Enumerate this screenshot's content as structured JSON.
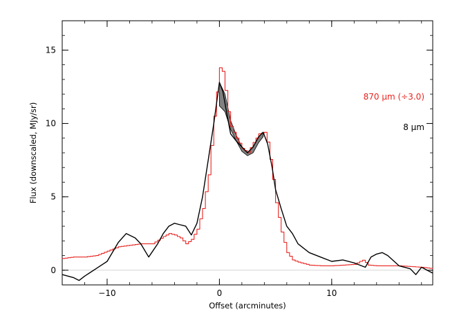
{
  "chart_data": {
    "type": "line",
    "xlabel": "Offset (arcminutes)",
    "ylabel": "Flux (downscaled, MJy/sr)",
    "xlim": [
      -14,
      19
    ],
    "ylim": [
      -1,
      17
    ],
    "x_ticks": [
      -10,
      0,
      10
    ],
    "y_ticks": [
      0,
      5,
      10,
      15
    ],
    "x_tick_labels": [
      "−10",
      "0",
      "10"
    ],
    "y_tick_labels": [
      "0",
      "5",
      "10",
      "15"
    ],
    "grid": false,
    "zero_line": true,
    "legend_placement": "right",
    "series": [
      {
        "name": "870 μm (÷3.0)",
        "color": "#e8231f",
        "style": "step",
        "x": [
          -14,
          -13,
          -12,
          -11,
          -10,
          -9,
          -8,
          -7,
          -6,
          -5,
          -4.5,
          -4,
          -3.5,
          -3,
          -2.5,
          -2,
          -1.5,
          -1,
          -0.5,
          0,
          0.3,
          0.7,
          1,
          1.5,
          2,
          2.5,
          3,
          3.5,
          4,
          4.3,
          4.7,
          5,
          5.5,
          6,
          6.5,
          7,
          7.5,
          8,
          9,
          10,
          11,
          12,
          12.5,
          12.8,
          13.2,
          14,
          15,
          16,
          17,
          18,
          19
        ],
        "values": [
          0.8,
          0.9,
          0.9,
          1.0,
          1.3,
          1.6,
          1.7,
          1.8,
          1.8,
          2.3,
          2.5,
          2.4,
          2.2,
          1.8,
          2.1,
          2.8,
          4.2,
          6.5,
          10.5,
          13.8,
          13.5,
          11.0,
          9.8,
          9.0,
          8.3,
          8.0,
          8.7,
          9.3,
          9.4,
          8.6,
          6.5,
          4.6,
          2.6,
          1.2,
          0.7,
          0.55,
          0.45,
          0.35,
          0.3,
          0.3,
          0.35,
          0.4,
          0.6,
          0.7,
          0.35,
          0.3,
          0.3,
          0.3,
          0.25,
          0.2,
          0.1
        ]
      },
      {
        "name": "8 μm",
        "color": "#000000",
        "style": "line",
        "x": [
          -14,
          -13,
          -12.5,
          -12,
          -11,
          -10,
          -9,
          -8.3,
          -7.5,
          -7,
          -6.3,
          -5.5,
          -5,
          -4.5,
          -4,
          -3.5,
          -3,
          -2.5,
          -2,
          -1.5,
          -1,
          -0.5,
          0,
          0.3,
          0.7,
          1,
          1.5,
          2,
          2.5,
          3,
          3.5,
          3.9,
          4.3,
          4.7,
          5,
          5.5,
          6,
          6.5,
          7,
          8,
          9,
          10,
          11,
          12,
          13,
          13.5,
          14,
          14.5,
          15,
          16,
          17,
          17.5,
          18,
          19
        ],
        "values": [
          -0.3,
          -0.5,
          -0.7,
          -0.4,
          0.1,
          0.6,
          1.9,
          2.5,
          2.2,
          1.8,
          0.9,
          1.8,
          2.5,
          3.0,
          3.2,
          3.1,
          3.0,
          2.4,
          3.2,
          5.0,
          7.5,
          10.0,
          12.8,
          12.2,
          10.5,
          9.3,
          8.8,
          8.4,
          8.0,
          8.4,
          9.1,
          9.4,
          8.6,
          7.0,
          5.5,
          4.2,
          3.0,
          2.5,
          1.8,
          1.2,
          0.9,
          0.6,
          0.7,
          0.5,
          0.2,
          0.9,
          1.1,
          1.2,
          1.0,
          0.3,
          0.1,
          -0.3,
          0.2,
          -0.2
        ]
      }
    ],
    "band": {
      "color": "#808080",
      "x": [
        0,
        0.5,
        1,
        1.5,
        2,
        2.5,
        3,
        3.5,
        3.9
      ],
      "lower": [
        11.2,
        10.8,
        9.6,
        8.8,
        8.1,
        7.8,
        8.0,
        8.7,
        9.1
      ],
      "upper": [
        12.8,
        12.0,
        10.2,
        9.2,
        8.4,
        8.0,
        8.4,
        9.1,
        9.4
      ]
    }
  }
}
